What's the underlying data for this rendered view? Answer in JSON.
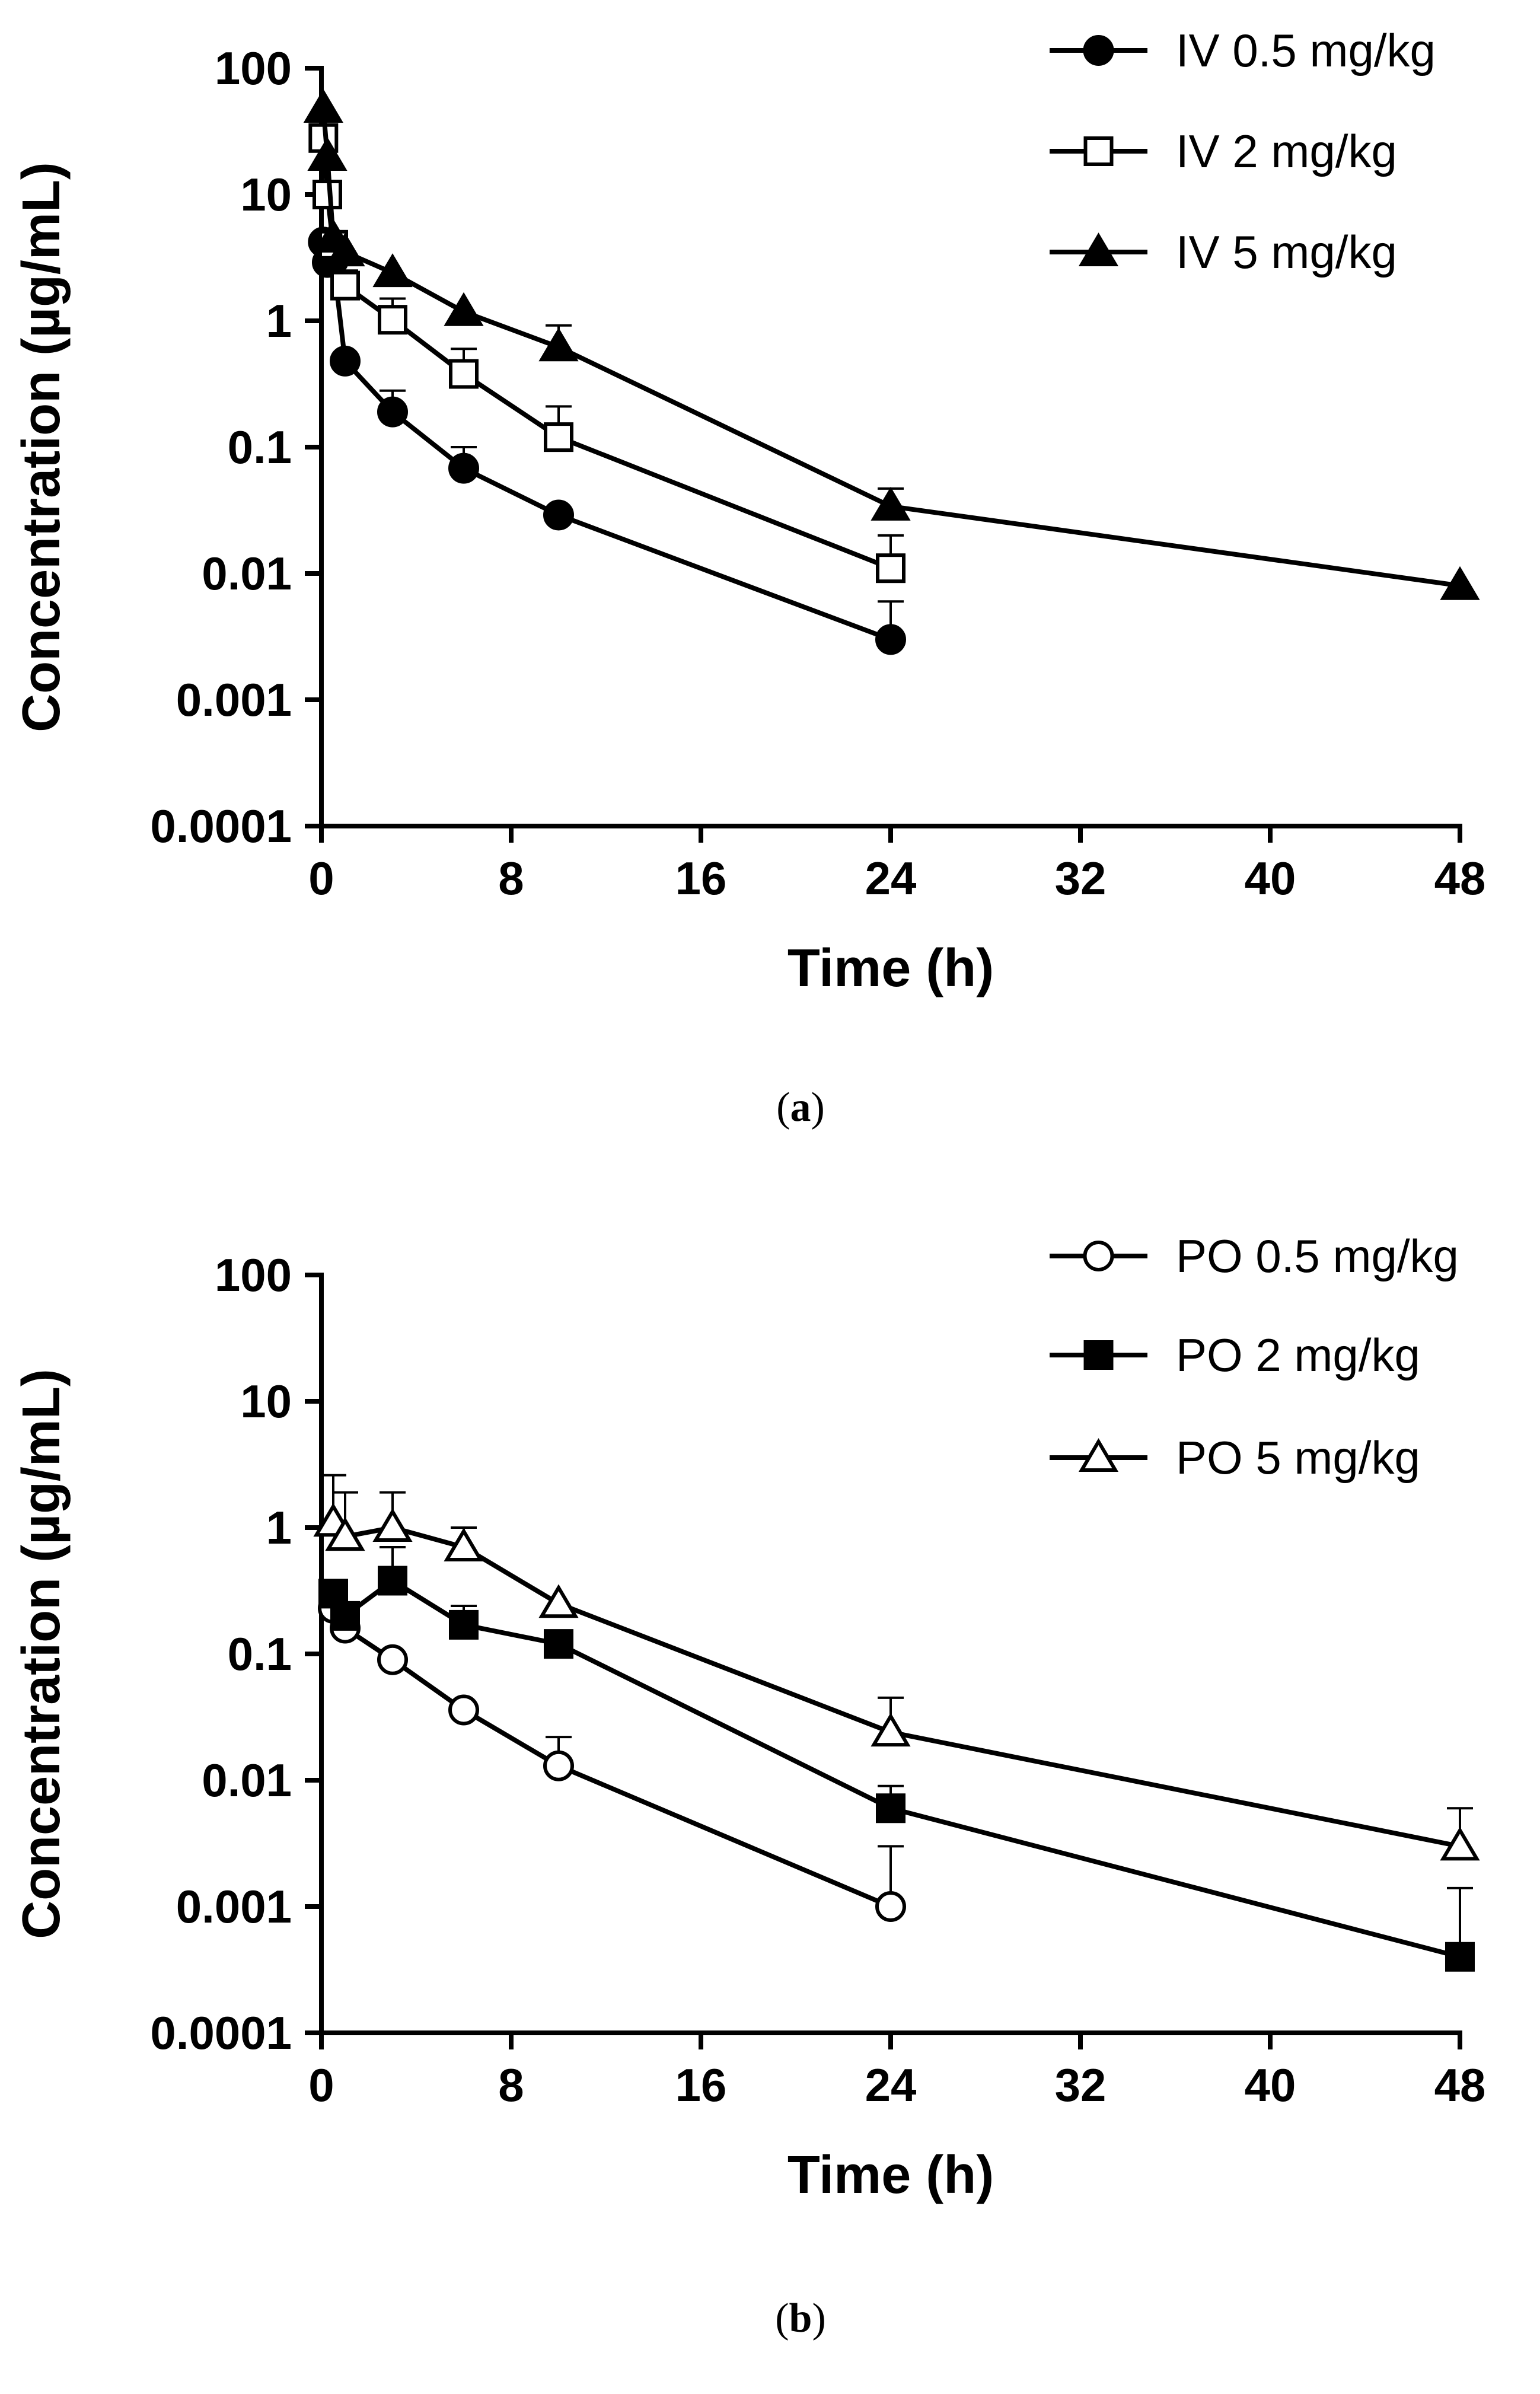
{
  "chart_data": [
    {
      "type": "line",
      "panel_label": "a",
      "xlabel": "Time (h)",
      "ylabel": "Concentration (µg/mL)",
      "yscale": "log",
      "xlim": [
        0,
        48
      ],
      "ylim": [
        0.0001,
        100
      ],
      "xticks": [
        "0",
        "8",
        "16",
        "24",
        "32",
        "40",
        "48"
      ],
      "yticks": [
        "0.0001",
        "0.001",
        "0.01",
        "0.1",
        "1",
        "10",
        "100"
      ],
      "legend_position": "top-right",
      "series": [
        {
          "name": "IV 0.5 mg/kg",
          "marker": "circle-filled",
          "x": [
            0.083,
            0.25,
            0.5,
            1,
            3,
            6,
            10,
            24
          ],
          "y": [
            4.2,
            2.9,
            3.0,
            0.48,
            0.19,
            0.068,
            0.029,
            0.003
          ],
          "error": [
            null,
            null,
            null,
            null,
            0.28,
            0.1,
            null,
            0.006
          ]
        },
        {
          "name": "IV 2 mg/kg",
          "marker": "square-open",
          "x": [
            0.083,
            0.25,
            0.5,
            1,
            3,
            6,
            10,
            24
          ],
          "y": [
            28,
            10,
            4.0,
            1.9,
            1.02,
            0.38,
            0.12,
            0.011
          ],
          "error": [
            null,
            null,
            null,
            2.5,
            1.5,
            0.6,
            0.21,
            0.02
          ]
        },
        {
          "name": "IV 5 mg/kg",
          "marker": "triangle-filled",
          "x": [
            0.083,
            0.25,
            0.5,
            1,
            3,
            6,
            10,
            24,
            48
          ],
          "y": [
            48,
            20,
            4.5,
            3.5,
            2.4,
            1.18,
            0.62,
            0.034,
            0.008
          ],
          "error": [
            null,
            null,
            null,
            null,
            null,
            null,
            0.92,
            0.047,
            null
          ]
        }
      ]
    },
    {
      "type": "line",
      "panel_label": "b",
      "xlabel": "Time (h)",
      "ylabel": "Concentration (µg/mL)",
      "yscale": "log",
      "xlim": [
        0,
        48
      ],
      "ylim": [
        0.0001,
        100
      ],
      "xticks": [
        "0",
        "8",
        "16",
        "24",
        "32",
        "40",
        "48"
      ],
      "yticks": [
        "0.0001",
        "0.001",
        "0.01",
        "0.1",
        "1",
        "10",
        "100"
      ],
      "legend_position": "top-right",
      "series": [
        {
          "name": "PO 0.5 mg/kg",
          "marker": "circle-open",
          "x": [
            0.5,
            1,
            3,
            6,
            10,
            24
          ],
          "y": [
            0.23,
            0.16,
            0.09,
            0.036,
            0.013,
            0.001
          ],
          "error": [
            null,
            null,
            null,
            null,
            0.022,
            0.003
          ]
        },
        {
          "name": "PO 2 mg/kg",
          "marker": "square-filled",
          "x": [
            0.5,
            1,
            3,
            6,
            10,
            24,
            48
          ],
          "y": [
            0.3,
            0.2,
            0.38,
            0.17,
            0.12,
            0.006,
            0.0004
          ],
          "error": [
            null,
            null,
            0.7,
            0.24,
            null,
            0.009,
            0.0014
          ]
        },
        {
          "name": "PO 5 mg/kg",
          "marker": "triangle-open",
          "x": [
            0.5,
            1,
            3,
            6,
            10,
            24,
            48
          ],
          "y": [
            1.1,
            0.85,
            1.0,
            0.7,
            0.25,
            0.024,
            0.003
          ],
          "error": [
            2.6,
            1.9,
            1.9,
            1.0,
            null,
            0.045,
            0.006
          ]
        }
      ]
    }
  ]
}
